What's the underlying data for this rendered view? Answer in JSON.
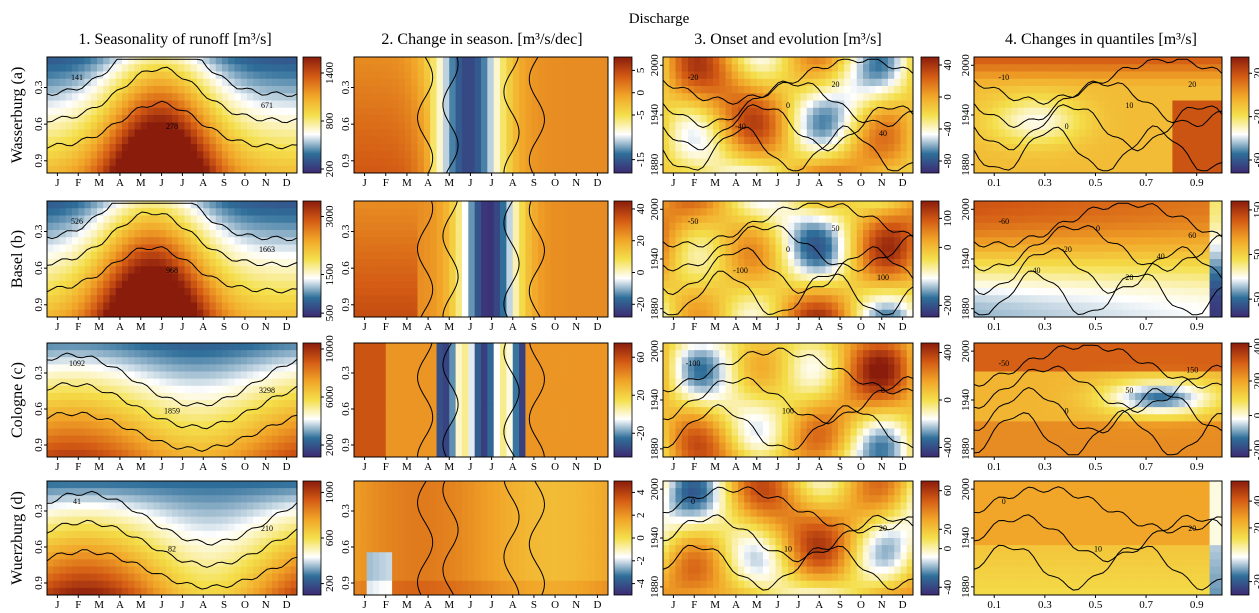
{
  "main_title": "Discharge",
  "column_titles": [
    "1. Seasonality of runoff [m³/s]",
    "2. Change in season. [m³/s/dec]",
    "3. Onset and evolution [m³/s]",
    "4. Changes in quantiles [m³/s]"
  ],
  "row_labels": [
    "Wasserburg (a)",
    "Basel (b)",
    "Cologne (c)",
    "Wuerzburg (d)"
  ],
  "colors": {
    "col1": [
      "#3d2a72",
      "#2f6f9a",
      "#ffffff",
      "#f4df4a",
      "#f1a428",
      "#d35a14",
      "#8a1c0c"
    ],
    "div": [
      "#3d2a72",
      "#2f6f9a",
      "#ffffff",
      "#f4df4a",
      "#f1a428",
      "#d35a14",
      "#8a1c0c"
    ]
  },
  "chart_data": [
    {
      "type": "heatmap",
      "panel": "1. Seasonality of runoff",
      "title": "1. Seasonality of runoff [m³/s]",
      "x_ticklabels": [
        "J",
        "F",
        "M",
        "A",
        "M",
        "J",
        "J",
        "A",
        "S",
        "O",
        "N",
        "D"
      ],
      "y_ticklabels": [
        "0.3",
        "0.6",
        "0.9"
      ],
      "rows": [
        {
          "station": "Wasserburg (a)",
          "colorbar_ticks": [
            "1400",
            "800",
            "200"
          ],
          "colorbar_range": [
            150,
            1600
          ],
          "contour_labels": [
            "141",
            "278",
            "671"
          ],
          "peak_month": 6,
          "value_range": [
            141,
            1500
          ]
        },
        {
          "station": "Basel (b)",
          "colorbar_ticks": [
            "3000",
            "1500",
            "500"
          ],
          "colorbar_range": [
            400,
            3400
          ],
          "contour_labels": [
            "526",
            "968",
            "1663"
          ],
          "peak_month": 6,
          "value_range": [
            500,
            3200
          ]
        },
        {
          "station": "Cologne (c)",
          "colorbar_ticks": [
            "10000",
            "6000",
            "2000"
          ],
          "colorbar_range": [
            1000,
            10500
          ],
          "contour_labels": [
            "1092",
            "1859",
            "3298"
          ],
          "peak_month": 2,
          "value_range": [
            1000,
            10000
          ]
        },
        {
          "station": "Wuerzburg (d)",
          "colorbar_ticks": [
            "1000",
            "600",
            "200"
          ],
          "colorbar_range": [
            100,
            1100
          ],
          "contour_labels": [
            "41",
            "82",
            "210"
          ],
          "peak_month": 2,
          "value_range": [
            41,
            1000
          ]
        }
      ]
    },
    {
      "type": "heatmap",
      "panel": "2. Change in seasonality",
      "title": "2. Change in season. [m³/s/dec]",
      "x_ticklabels": [
        "J",
        "F",
        "M",
        "A",
        "M",
        "J",
        "J",
        "A",
        "S",
        "O",
        "N",
        "D"
      ],
      "y_ticklabels": [
        "0.3",
        "0.6",
        "0.9"
      ],
      "rows": [
        {
          "station": "Wasserburg (a)",
          "colorbar_ticks": [
            "5",
            "0",
            "-5",
            "-15"
          ],
          "colorbar_range": [
            -18,
            8
          ]
        },
        {
          "station": "Basel (b)",
          "colorbar_ticks": [
            "40",
            "20",
            "0",
            "-20"
          ],
          "colorbar_range": [
            -28,
            45
          ]
        },
        {
          "station": "Cologne (c)",
          "colorbar_ticks": [
            "60",
            "20",
            "-20"
          ],
          "colorbar_range": [
            -45,
            75
          ]
        },
        {
          "station": "Wuerzburg (d)",
          "colorbar_ticks": [
            "4",
            "2",
            "0",
            "-2",
            "-4"
          ],
          "colorbar_range": [
            -5,
            5
          ]
        }
      ]
    },
    {
      "type": "heatmap",
      "panel": "3. Onset and evolution",
      "title": "3. Onset and evolution [m³/s]",
      "x_ticklabels": [
        "J",
        "F",
        "M",
        "A",
        "M",
        "J",
        "J",
        "A",
        "S",
        "O",
        "N",
        "D"
      ],
      "y_ticklabels": [
        "1880",
        "1940",
        "2000"
      ],
      "rows": [
        {
          "station": "Wasserburg (a)",
          "colorbar_ticks": [
            "40",
            "0",
            "-40",
            "-80"
          ],
          "colorbar_range": [
            -95,
            50
          ],
          "contour_labels": [
            "-20",
            "-40",
            "0",
            "20",
            "40"
          ]
        },
        {
          "station": "Basel (b)",
          "colorbar_ticks": [
            "100",
            "0",
            "-200"
          ],
          "colorbar_range": [
            -240,
            160
          ],
          "contour_labels": [
            "-50",
            "-100",
            "0",
            "50",
            "100"
          ]
        },
        {
          "station": "Cologne (c)",
          "colorbar_ticks": [
            "400",
            "0",
            "-400"
          ],
          "colorbar_range": [
            -480,
            480
          ],
          "contour_labels": [
            "-100",
            "100",
            "0"
          ]
        },
        {
          "station": "Wuerzburg (d)",
          "colorbar_ticks": [
            "60",
            "20",
            "0",
            "-40"
          ],
          "colorbar_range": [
            -48,
            70
          ],
          "contour_labels": [
            "0",
            "10",
            "20"
          ]
        }
      ]
    },
    {
      "type": "heatmap",
      "panel": "4. Changes in quantiles",
      "title": "4. Changes in quantiles [m³/s]",
      "x_ticklabels": [
        "0.1",
        "0.3",
        "0.5",
        "0.7",
        "0.9"
      ],
      "y_ticklabels": [
        "1880",
        "1940",
        "2000"
      ],
      "rows": [
        {
          "station": "Wasserburg (a)",
          "colorbar_ticks": [
            "20",
            "-20",
            "-60"
          ],
          "colorbar_range": [
            -72,
            35
          ],
          "contour_labels": [
            "-10",
            "0",
            "10",
            "20"
          ]
        },
        {
          "station": "Basel (b)",
          "colorbar_ticks": [
            "150",
            "50",
            "-50"
          ],
          "colorbar_range": [
            -90,
            170
          ],
          "contour_labels": [
            "-60",
            "-40",
            "-20",
            "0",
            "20",
            "40",
            "60"
          ]
        },
        {
          "station": "Cologne (c)",
          "colorbar_ticks": [
            "400",
            "200",
            "0",
            "-200"
          ],
          "colorbar_range": [
            -240,
            420
          ],
          "contour_labels": [
            "-50",
            "0",
            "50",
            "150"
          ]
        },
        {
          "station": "Wuerzburg (d)",
          "colorbar_ticks": [
            "40",
            "20",
            "-20"
          ],
          "colorbar_range": [
            -30,
            55
          ],
          "contour_labels": [
            "0",
            "10",
            "20"
          ]
        }
      ]
    }
  ]
}
